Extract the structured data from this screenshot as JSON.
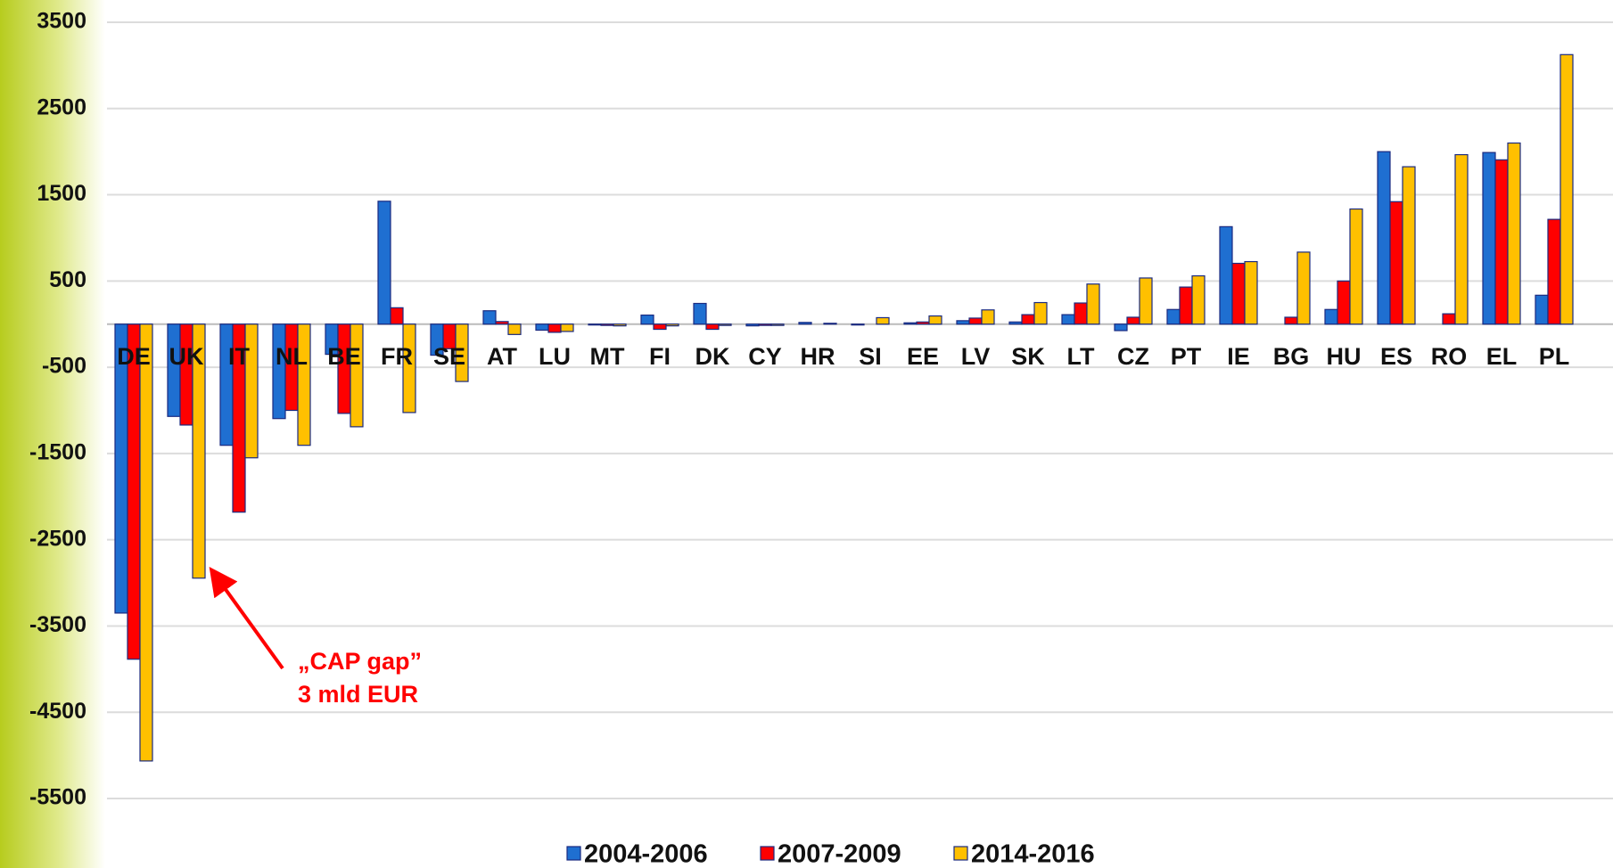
{
  "chart_data": {
    "type": "bar",
    "categories": [
      "DE",
      "UK",
      "IT",
      "NL",
      "BE",
      "FR",
      "SE",
      "AT",
      "LU",
      "MT",
      "FI",
      "DK",
      "CY",
      "HR",
      "SI",
      "EE",
      "LV",
      "SK",
      "LT",
      "CZ",
      "PT",
      "IE",
      "BG",
      "HU",
      "ES",
      "RO",
      "EL",
      "PL"
    ],
    "series": [
      {
        "name": "2004-2006",
        "color": "#1f6fd1",
        "values": [
          -3350,
          -1070,
          -1405,
          -1095,
          -350,
          1425,
          -360,
          155,
          -70,
          -10,
          105,
          240,
          -20,
          20,
          -10,
          15,
          40,
          25,
          110,
          -75,
          170,
          1130,
          0,
          170,
          2000,
          0,
          1990,
          335
        ]
      },
      {
        "name": "2007-2009",
        "color": "#ff0000",
        "values": [
          -3885,
          -1170,
          -2180,
          -1000,
          -1035,
          190,
          -285,
          30,
          -95,
          -15,
          -60,
          -60,
          -15,
          0,
          0,
          25,
          70,
          110,
          245,
          80,
          430,
          705,
          80,
          500,
          1420,
          120,
          1905,
          1215
        ]
      },
      {
        "name": "2014-2016",
        "color": "#ffc000",
        "values": [
          -5065,
          -2945,
          -1550,
          -1405,
          -1190,
          -1025,
          -665,
          -120,
          -85,
          -20,
          -20,
          -15,
          -15,
          10,
          75,
          95,
          165,
          250,
          465,
          535,
          560,
          725,
          835,
          1335,
          1825,
          1965,
          2100,
          3125
        ]
      }
    ],
    "ylim": [
      -5500,
      3500
    ],
    "yticks": [
      3500,
      2500,
      1500,
      500,
      -500,
      -1500,
      -2500,
      -3500,
      -4500,
      -5500
    ],
    "grid": true,
    "legend": "bottom",
    "annotations": [
      "„CAP gap”",
      "3 mld EUR"
    ]
  }
}
